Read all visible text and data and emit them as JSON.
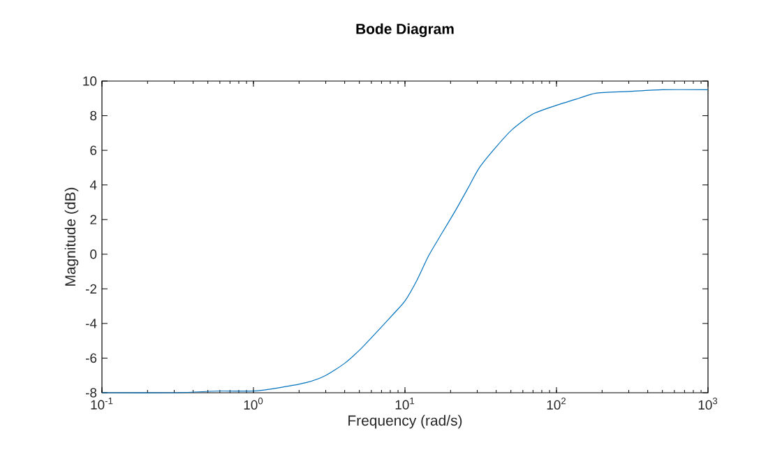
{
  "chart_data": {
    "type": "line",
    "title": "Bode Diagram",
    "xlabel": "Frequency (rad/s)",
    "ylabel": "Magnitude (dB)",
    "log": "x",
    "xlim": [
      0.1,
      1000
    ],
    "ylim": [
      -8,
      10
    ],
    "xticks": [
      {
        "value": 0.1,
        "label": "10$^{-1}$"
      },
      {
        "value": 1,
        "label": "10$^{0}$"
      },
      {
        "value": 10,
        "label": "10$^{1}$"
      },
      {
        "value": 100,
        "label": "10$^{2}$"
      },
      {
        "value": 1000,
        "label": "10$^{3}$"
      }
    ],
    "yticks": [
      -8,
      -6,
      -4,
      -2,
      0,
      2,
      4,
      6,
      8,
      10
    ],
    "x": [
      0.1,
      0.3,
      0.6,
      1,
      1.5,
      2.26,
      3,
      4,
      5.2,
      7,
      8.5,
      10,
      12,
      14.3,
      17.5,
      21.8,
      26,
      31,
      40,
      51,
      70,
      100,
      140,
      182,
      300,
      500,
      1000
    ],
    "series": [
      {
        "color": "#0072bd",
        "values": [
          -8.0,
          -8.0,
          -7.9,
          -7.9,
          -7.7,
          -7.4,
          -7.0,
          -6.3,
          -5.4,
          -4.2,
          -3.4,
          -2.7,
          -1.5,
          -0.1,
          1.2,
          2.6,
          3.8,
          5.0,
          6.2,
          7.2,
          8.1,
          8.6,
          9.0,
          9.3,
          9.4,
          9.5,
          9.5
        ]
      }
    ]
  }
}
